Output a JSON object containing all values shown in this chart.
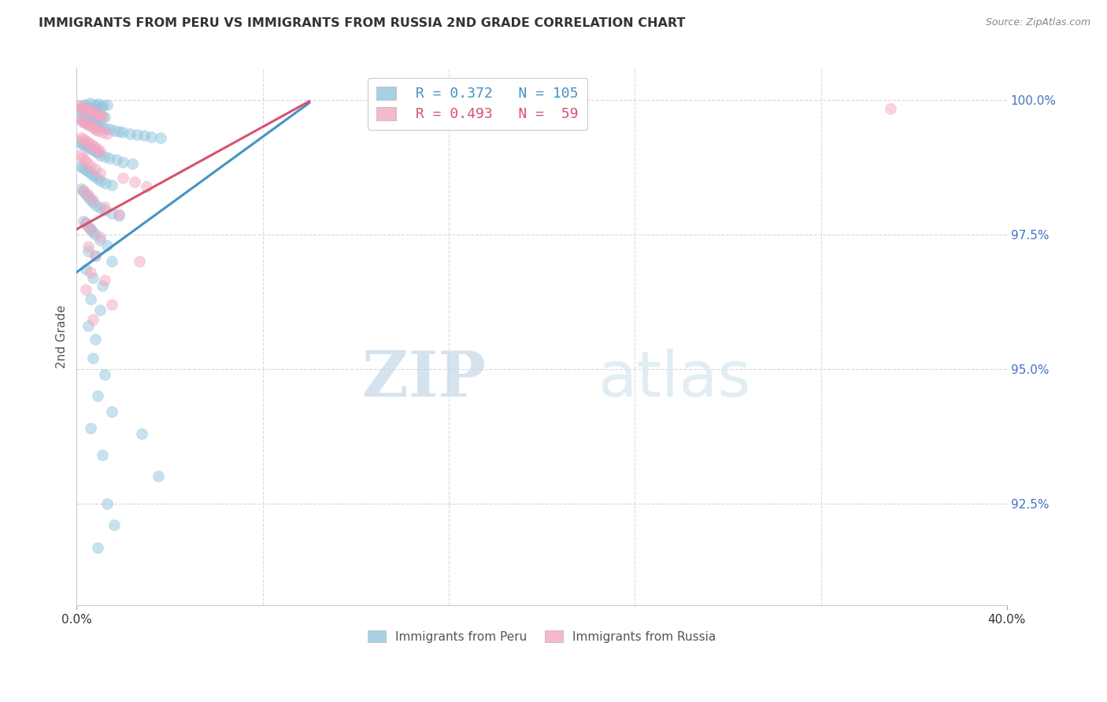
{
  "title": "IMMIGRANTS FROM PERU VS IMMIGRANTS FROM RUSSIA 2ND GRADE CORRELATION CHART",
  "source": "Source: ZipAtlas.com",
  "ylabel": "2nd Grade",
  "ytick_labels": [
    "100.0%",
    "97.5%",
    "95.0%",
    "92.5%"
  ],
  "ytick_values": [
    1.0,
    0.975,
    0.95,
    0.925
  ],
  "xlim": [
    0.0,
    40.0
  ],
  "ylim": [
    0.906,
    1.006
  ],
  "legend_peru_R": 0.372,
  "legend_peru_N": 105,
  "legend_russia_R": 0.493,
  "legend_russia_N": 59,
  "peru_color": "#92c5de",
  "russia_color": "#f4a6c0",
  "peru_line_color": "#4393c3",
  "russia_line_color": "#d6536d",
  "peru_scatter": [
    [
      0.15,
      0.9985
    ],
    [
      0.25,
      0.999
    ],
    [
      0.35,
      0.9992
    ],
    [
      0.45,
      0.9988
    ],
    [
      0.55,
      0.9994
    ],
    [
      0.65,
      0.9986
    ],
    [
      0.75,
      0.9991
    ],
    [
      0.85,
      0.9989
    ],
    [
      0.95,
      0.9993
    ],
    [
      1.05,
      0.9987
    ],
    [
      1.15,
      0.999
    ],
    [
      1.3,
      0.9992
    ],
    [
      0.2,
      0.9982
    ],
    [
      0.3,
      0.9978
    ],
    [
      0.4,
      0.998
    ],
    [
      0.5,
      0.9975
    ],
    [
      0.6,
      0.9977
    ],
    [
      0.7,
      0.9973
    ],
    [
      0.8,
      0.9976
    ],
    [
      0.9,
      0.9974
    ],
    [
      1.0,
      0.9972
    ],
    [
      1.1,
      0.997
    ],
    [
      1.2,
      0.9968
    ],
    [
      0.15,
      0.9965
    ],
    [
      0.25,
      0.9962
    ],
    [
      0.35,
      0.996
    ],
    [
      0.45,
      0.9958
    ],
    [
      0.55,
      0.9957
    ],
    [
      0.65,
      0.9956
    ],
    [
      0.75,
      0.9955
    ],
    [
      0.85,
      0.9953
    ],
    [
      0.95,
      0.9952
    ],
    [
      1.05,
      0.995
    ],
    [
      1.2,
      0.9948
    ],
    [
      1.4,
      0.9946
    ],
    [
      1.6,
      0.9944
    ],
    [
      1.8,
      0.9942
    ],
    [
      2.0,
      0.994
    ],
    [
      2.3,
      0.9938
    ],
    [
      2.6,
      0.9936
    ],
    [
      2.9,
      0.9934
    ],
    [
      3.2,
      0.9932
    ],
    [
      3.6,
      0.993
    ],
    [
      0.1,
      0.9925
    ],
    [
      0.2,
      0.992
    ],
    [
      0.3,
      0.9918
    ],
    [
      0.4,
      0.9915
    ],
    [
      0.5,
      0.9913
    ],
    [
      0.6,
      0.991
    ],
    [
      0.7,
      0.9908
    ],
    [
      0.8,
      0.9905
    ],
    [
      0.9,
      0.9902
    ],
    [
      1.0,
      0.9898
    ],
    [
      1.2,
      0.9895
    ],
    [
      1.4,
      0.9892
    ],
    [
      1.7,
      0.9889
    ],
    [
      2.0,
      0.9885
    ],
    [
      2.4,
      0.9882
    ],
    [
      0.15,
      0.9878
    ],
    [
      0.25,
      0.9875
    ],
    [
      0.35,
      0.9872
    ],
    [
      0.45,
      0.9869
    ],
    [
      0.55,
      0.9866
    ],
    [
      0.65,
      0.9862
    ],
    [
      0.75,
      0.9858
    ],
    [
      0.9,
      0.9854
    ],
    [
      1.05,
      0.985
    ],
    [
      1.25,
      0.9846
    ],
    [
      1.5,
      0.9842
    ],
    [
      0.2,
      0.9835
    ],
    [
      0.3,
      0.983
    ],
    [
      0.4,
      0.9825
    ],
    [
      0.5,
      0.982
    ],
    [
      0.6,
      0.9815
    ],
    [
      0.7,
      0.981
    ],
    [
      0.85,
      0.9805
    ],
    [
      1.0,
      0.98
    ],
    [
      1.2,
      0.9795
    ],
    [
      1.5,
      0.979
    ],
    [
      1.8,
      0.9785
    ],
    [
      0.3,
      0.9775
    ],
    [
      0.4,
      0.977
    ],
    [
      0.5,
      0.9765
    ],
    [
      0.6,
      0.976
    ],
    [
      0.7,
      0.9755
    ],
    [
      0.8,
      0.975
    ],
    [
      1.0,
      0.974
    ],
    [
      1.3,
      0.973
    ],
    [
      0.5,
      0.972
    ],
    [
      0.8,
      0.971
    ],
    [
      1.5,
      0.97
    ],
    [
      0.4,
      0.9685
    ],
    [
      0.7,
      0.967
    ],
    [
      1.1,
      0.9655
    ],
    [
      0.6,
      0.963
    ],
    [
      1.0,
      0.961
    ],
    [
      0.5,
      0.958
    ],
    [
      0.8,
      0.9555
    ],
    [
      0.7,
      0.952
    ],
    [
      1.2,
      0.949
    ],
    [
      0.9,
      0.945
    ],
    [
      1.5,
      0.942
    ],
    [
      0.6,
      0.939
    ],
    [
      2.8,
      0.938
    ],
    [
      1.1,
      0.934
    ],
    [
      3.5,
      0.93
    ],
    [
      1.3,
      0.925
    ],
    [
      1.6,
      0.921
    ],
    [
      0.9,
      0.9168
    ]
  ],
  "russia_scatter": [
    [
      0.1,
      0.999
    ],
    [
      0.2,
      0.9988
    ],
    [
      0.3,
      0.9986
    ],
    [
      0.4,
      0.9984
    ],
    [
      0.5,
      0.9982
    ],
    [
      0.6,
      0.998
    ],
    [
      0.7,
      0.9978
    ],
    [
      0.8,
      0.9976
    ],
    [
      0.9,
      0.9974
    ],
    [
      1.0,
      0.9972
    ],
    [
      1.1,
      0.997
    ],
    [
      0.15,
      0.9965
    ],
    [
      0.25,
      0.996
    ],
    [
      0.35,
      0.9958
    ],
    [
      0.45,
      0.9955
    ],
    [
      0.55,
      0.9953
    ],
    [
      0.65,
      0.995
    ],
    [
      0.75,
      0.9948
    ],
    [
      0.85,
      0.9945
    ],
    [
      0.95,
      0.9943
    ],
    [
      1.1,
      0.994
    ],
    [
      1.3,
      0.9938
    ],
    [
      0.2,
      0.993
    ],
    [
      0.3,
      0.9928
    ],
    [
      0.4,
      0.9925
    ],
    [
      0.5,
      0.9922
    ],
    [
      0.6,
      0.9919
    ],
    [
      0.7,
      0.9916
    ],
    [
      0.8,
      0.9912
    ],
    [
      0.9,
      0.9908
    ],
    [
      1.0,
      0.9905
    ],
    [
      0.15,
      0.9898
    ],
    [
      0.25,
      0.9893
    ],
    [
      0.35,
      0.9888
    ],
    [
      0.45,
      0.9883
    ],
    [
      0.6,
      0.9878
    ],
    [
      0.8,
      0.9872
    ],
    [
      1.0,
      0.9865
    ],
    [
      2.0,
      0.9855
    ],
    [
      2.5,
      0.9848
    ],
    [
      3.0,
      0.984
    ],
    [
      0.3,
      0.9832
    ],
    [
      0.5,
      0.9825
    ],
    [
      0.7,
      0.9815
    ],
    [
      1.2,
      0.9802
    ],
    [
      1.8,
      0.9788
    ],
    [
      0.4,
      0.9772
    ],
    [
      0.6,
      0.976
    ],
    [
      1.0,
      0.9745
    ],
    [
      0.5,
      0.9728
    ],
    [
      0.8,
      0.971
    ],
    [
      2.7,
      0.97
    ],
    [
      0.6,
      0.968
    ],
    [
      1.2,
      0.9665
    ],
    [
      0.4,
      0.9648
    ],
    [
      1.5,
      0.962
    ],
    [
      0.7,
      0.9592
    ],
    [
      35.0,
      0.9985
    ]
  ],
  "peru_trend": {
    "x_start": 0.0,
    "y_start": 0.968,
    "x_end": 10.0,
    "y_end": 0.9995
  },
  "russia_trend": {
    "x_start": 0.0,
    "y_start": 0.976,
    "x_end": 10.0,
    "y_end": 0.9998
  },
  "watermark_zip": "ZIP",
  "watermark_atlas": "atlas",
  "background_color": "#ffffff",
  "grid_color": "#cccccc"
}
